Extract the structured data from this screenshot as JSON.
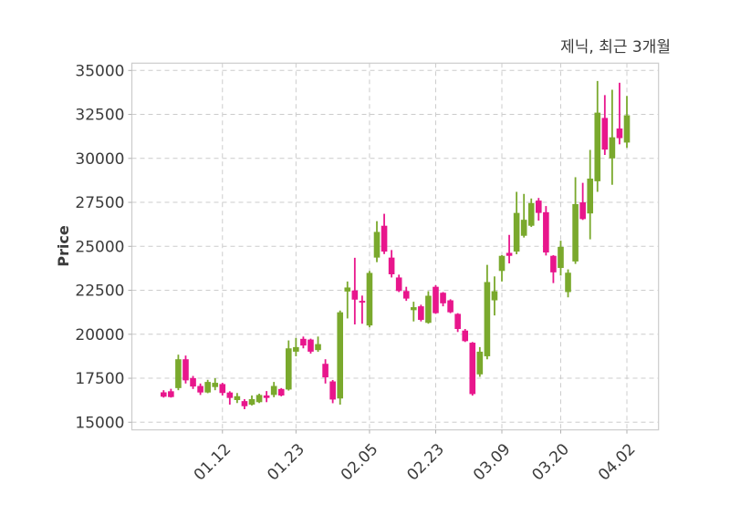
{
  "header": {
    "title": "제닉, 최근 3개월"
  },
  "chart_data": {
    "type": "candlestick",
    "title": "제닉, 최근 3개월",
    "xlabel": "",
    "ylabel": "Price",
    "grid": true,
    "ylim": [
      14550,
      35450
    ],
    "y_ticks": [
      15000,
      17500,
      20000,
      22500,
      25000,
      27500,
      30000,
      32500,
      35000
    ],
    "x_tick_labels": [
      "01.12",
      "01.23",
      "02.05",
      "02.23",
      "03.09",
      "03.20",
      "04.02"
    ],
    "x_tick_candle_indices": [
      8,
      18,
      28,
      37,
      46,
      54,
      63
    ],
    "colors": {
      "up": "#7aa92d",
      "down": "#e8168c",
      "grid": "#cccccc",
      "spine": "#cccccc",
      "text": "#3b3b3b",
      "background": "#ffffff"
    },
    "candle_format": [
      "open",
      "high",
      "low",
      "close"
    ],
    "candles": [
      [
        16700,
        16820,
        16400,
        16450
      ],
      [
        16760,
        16900,
        16400,
        16430
      ],
      [
        16940,
        18840,
        16820,
        18580
      ],
      [
        18580,
        18790,
        17200,
        17380
      ],
      [
        17510,
        17630,
        16890,
        17030
      ],
      [
        17060,
        17200,
        16550,
        16690
      ],
      [
        16690,
        17410,
        16650,
        17290
      ],
      [
        17000,
        17500,
        16820,
        17240
      ],
      [
        17170,
        17240,
        16520,
        16660
      ],
      [
        16690,
        16760,
        16000,
        16380
      ],
      [
        16260,
        16660,
        16090,
        16480
      ],
      [
        16200,
        16310,
        15740,
        15910
      ],
      [
        16000,
        16520,
        15950,
        16310
      ],
      [
        16140,
        16620,
        16090,
        16550
      ],
      [
        16520,
        16770,
        16140,
        16380
      ],
      [
        16550,
        17290,
        16420,
        17060
      ],
      [
        16890,
        16940,
        16470,
        16520
      ],
      [
        16860,
        19650,
        16800,
        19200
      ],
      [
        19010,
        19790,
        18750,
        19270
      ],
      [
        19740,
        19870,
        19200,
        19360
      ],
      [
        19700,
        19750,
        18900,
        19010
      ],
      [
        19100,
        19870,
        19000,
        19440
      ],
      [
        18320,
        18580,
        17200,
        17550
      ],
      [
        17320,
        17400,
        16080,
        16290
      ],
      [
        16350,
        21350,
        16000,
        21250
      ],
      [
        22430,
        23000,
        20900,
        22660
      ],
      [
        22490,
        24350,
        20560,
        21970
      ],
      [
        21900,
        22200,
        20600,
        21800
      ],
      [
        20500,
        23600,
        20400,
        23490
      ],
      [
        24360,
        26430,
        24100,
        25820
      ],
      [
        26170,
        26850,
        24560,
        24700
      ],
      [
        24360,
        24790,
        23230,
        23410
      ],
      [
        23230,
        23390,
        22400,
        22460
      ],
      [
        22460,
        22700,
        21900,
        22030
      ],
      [
        21370,
        21850,
        20730,
        21540
      ],
      [
        21590,
        21680,
        20730,
        20820
      ],
      [
        20650,
        22450,
        20600,
        22190
      ],
      [
        22700,
        22790,
        21160,
        21200
      ],
      [
        22360,
        22400,
        21590,
        21760
      ],
      [
        21930,
        21990,
        21200,
        21250
      ],
      [
        21160,
        21200,
        20130,
        20300
      ],
      [
        20210,
        20300,
        19560,
        19610
      ],
      [
        19520,
        19560,
        16510,
        16600
      ],
      [
        17720,
        19270,
        17580,
        19010
      ],
      [
        18750,
        23950,
        18580,
        22970
      ],
      [
        21930,
        23290,
        21070,
        22450
      ],
      [
        23600,
        24500,
        23000,
        24460
      ],
      [
        24630,
        25650,
        24030,
        24460
      ],
      [
        24700,
        28100,
        24550,
        26900
      ],
      [
        25600,
        27980,
        25500,
        26510
      ],
      [
        26170,
        27720,
        26100,
        27460
      ],
      [
        27600,
        27750,
        26460,
        26900
      ],
      [
        26940,
        27290,
        24480,
        24650
      ],
      [
        24460,
        24500,
        22910,
        23520
      ],
      [
        23770,
        25320,
        23340,
        24970
      ],
      [
        22400,
        23690,
        22100,
        23500
      ],
      [
        24140,
        28930,
        24000,
        27400
      ],
      [
        27500,
        28610,
        26500,
        26550
      ],
      [
        26870,
        30480,
        25400,
        28850
      ],
      [
        28700,
        34400,
        28100,
        32600
      ],
      [
        32300,
        33600,
        30200,
        30500
      ],
      [
        30000,
        33900,
        28500,
        31200
      ],
      [
        31700,
        34300,
        30800,
        31150
      ],
      [
        30900,
        33550,
        30600,
        32450
      ]
    ]
  }
}
